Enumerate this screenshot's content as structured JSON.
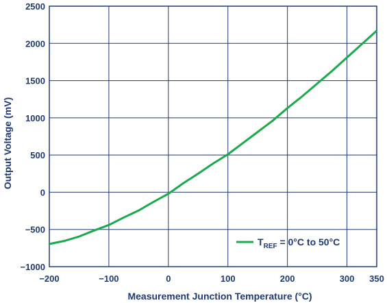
{
  "chart_data": {
    "type": "line",
    "xlabel": "Measurement Junction Temperature (°C)",
    "ylabel": "Output Voltage (mV)",
    "xlim": [
      -200,
      350
    ],
    "ylim": [
      -1000,
      2500
    ],
    "x_ticks": [
      -200,
      -100,
      0,
      100,
      200,
      300,
      350
    ],
    "x_tick_labels": [
      "−200",
      "−100",
      "0",
      "100",
      "200",
      "300",
      "350"
    ],
    "y_ticks": [
      -1000,
      -500,
      0,
      500,
      1000,
      1500,
      2000,
      2500
    ],
    "y_tick_labels": [
      "−1000",
      "−500",
      "0",
      "500",
      "1000",
      "1500",
      "2000",
      "2500"
    ],
    "grid": true,
    "legend_position": "bottom-right",
    "series": [
      {
        "name_main": "T",
        "name_sub": "REF",
        "name_rest": " = 0°C to 50°C",
        "color": "#1aaa4a",
        "x": [
          -200,
          -175,
          -150,
          -125,
          -100,
          -75,
          -50,
          -25,
          0,
          25,
          50,
          75,
          100,
          125,
          150,
          175,
          200,
          225,
          250,
          275,
          300,
          325,
          350
        ],
        "y": [
          -695,
          -655,
          -595,
          -515,
          -440,
          -340,
          -245,
          -130,
          -20,
          120,
          250,
          385,
          510,
          660,
          810,
          960,
          1130,
          1290,
          1460,
          1630,
          1810,
          1990,
          2170
        ]
      }
    ]
  }
}
